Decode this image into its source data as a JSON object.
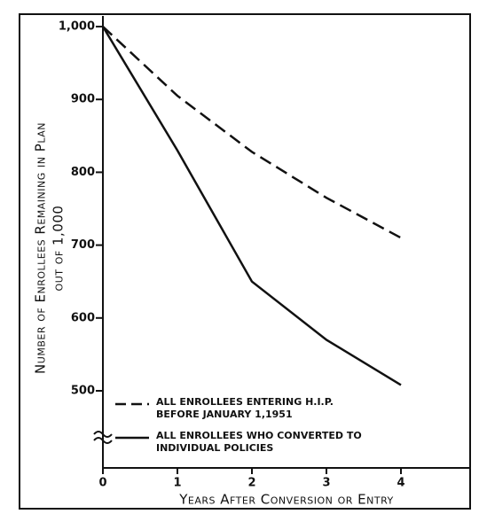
{
  "chart_data": {
    "type": "line",
    "y_label": "Number of Enrollees Remaining in Plan",
    "y_sublabel": "out of 1,000",
    "x_label": "Years After Conversion or Entry",
    "x": [
      0,
      1,
      2,
      3,
      4
    ],
    "xlim": [
      0,
      4
    ],
    "xticks": [
      0,
      1,
      2,
      3,
      4
    ],
    "ylim": [
      500,
      1000
    ],
    "yticks": [
      500,
      600,
      700,
      800,
      900,
      {
        "value": 1000,
        "label": "1,000"
      }
    ],
    "series": [
      {
        "name": "All enrollees entering H.I.P. before January 1,1951",
        "color": "#111111",
        "dash": true,
        "values": [
          1000,
          905,
          828,
          765,
          710
        ]
      },
      {
        "name": "All enrollees who converted to individual policies",
        "color": "#111111",
        "dash": false,
        "values": [
          1000,
          830,
          650,
          570,
          508
        ]
      }
    ]
  }
}
